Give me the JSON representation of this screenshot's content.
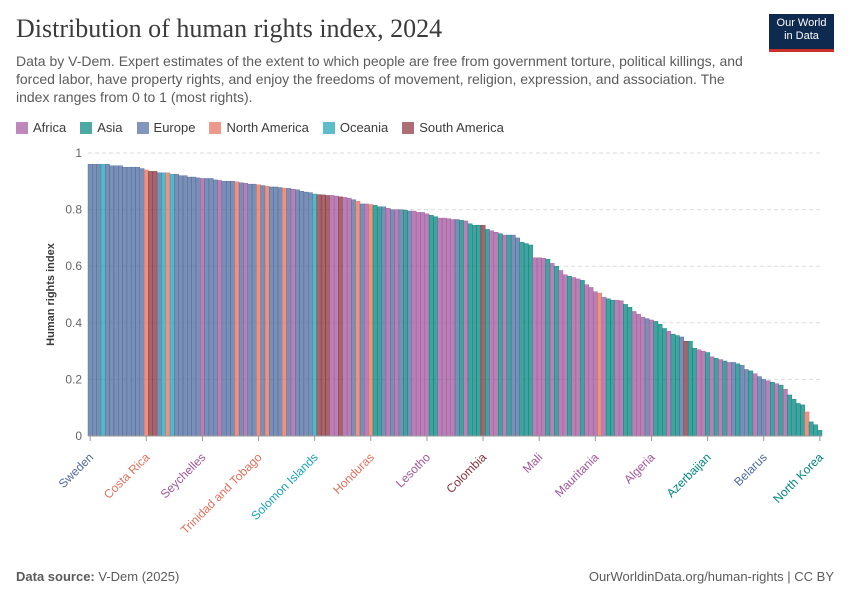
{
  "chart_data": {
    "type": "bar",
    "title": "Distribution of human rights index, 2024",
    "subtitle": "Data by V-Dem. Expert estimates of the extent to which people are free from government torture, political killings, and forced labor, have property rights, and enjoy the freedoms of movement, religion, expression, and association. The index ranges from 0 to 1 (most rights).",
    "logo": [
      "Our World",
      "in Data"
    ],
    "source_label": "Data source:",
    "source": "V-Dem (2025)",
    "url": "OurWorldinData.org/human-rights | CC BY",
    "ylabel": "Human rights index",
    "ylim": [
      0,
      1
    ],
    "yticks": [
      0,
      0.2,
      0.4,
      0.6,
      0.8,
      1
    ],
    "grid": true,
    "legend": [
      {
        "name": "Africa",
        "color": "#a2559c"
      },
      {
        "name": "Asia",
        "color": "#00847e"
      },
      {
        "name": "Europe",
        "color": "#4c6a9c"
      },
      {
        "name": "North America",
        "color": "#e56e5a"
      },
      {
        "name": "Oceania",
        "color": "#18a1b5"
      },
      {
        "name": "South America",
        "color": "#883039"
      }
    ],
    "categories": [
      "Sweden",
      null,
      null,
      null,
      null,
      null,
      null,
      null,
      null,
      null,
      null,
      null,
      null,
      "Costa Rica",
      null,
      null,
      null,
      null,
      null,
      null,
      null,
      null,
      null,
      null,
      null,
      null,
      "Seychelles",
      null,
      null,
      null,
      null,
      null,
      null,
      null,
      null,
      null,
      null,
      null,
      null,
      "Trinidad and Tobago",
      null,
      null,
      null,
      null,
      null,
      null,
      null,
      null,
      null,
      null,
      null,
      null,
      "Solomon Islands",
      null,
      null,
      null,
      null,
      null,
      null,
      null,
      null,
      null,
      null,
      null,
      null,
      "Honduras",
      null,
      null,
      null,
      null,
      null,
      null,
      null,
      null,
      null,
      null,
      null,
      null,
      "Lesotho",
      null,
      null,
      null,
      null,
      null,
      null,
      null,
      null,
      null,
      null,
      null,
      null,
      "Colombia",
      null,
      null,
      null,
      null,
      null,
      null,
      null,
      null,
      null,
      null,
      null,
      null,
      "Mali",
      null,
      null,
      null,
      null,
      null,
      null,
      null,
      null,
      null,
      null,
      null,
      null,
      "Mauritania",
      null,
      null,
      null,
      null,
      null,
      null,
      null,
      null,
      null,
      null,
      null,
      null,
      "Algeria",
      null,
      null,
      null,
      null,
      null,
      null,
      null,
      null,
      null,
      null,
      null,
      null,
      "Azerbaijan",
      null,
      null,
      null,
      null,
      null,
      null,
      null,
      null,
      null,
      null,
      null,
      null,
      "Belarus",
      null,
      null,
      null,
      null,
      null,
      null,
      null,
      null,
      null,
      null,
      null,
      null,
      "North Korea"
    ],
    "values": [
      0.96,
      0.96,
      0.96,
      0.96,
      0.96,
      0.955,
      0.955,
      0.955,
      0.95,
      0.95,
      0.95,
      0.95,
      0.945,
      0.94,
      0.935,
      0.935,
      0.93,
      0.93,
      0.93,
      0.925,
      0.925,
      0.92,
      0.92,
      0.915,
      0.915,
      0.912,
      0.91,
      0.91,
      0.91,
      0.905,
      0.903,
      0.9,
      0.9,
      0.9,
      0.898,
      0.895,
      0.893,
      0.89,
      0.89,
      0.888,
      0.885,
      0.883,
      0.88,
      0.88,
      0.878,
      0.876,
      0.875,
      0.872,
      0.87,
      0.865,
      0.862,
      0.86,
      0.855,
      0.853,
      0.852,
      0.85,
      0.85,
      0.848,
      0.845,
      0.843,
      0.84,
      0.835,
      0.83,
      0.82,
      0.82,
      0.818,
      0.815,
      0.81,
      0.81,
      0.805,
      0.8,
      0.8,
      0.8,
      0.798,
      0.795,
      0.795,
      0.79,
      0.79,
      0.785,
      0.78,
      0.775,
      0.77,
      0.77,
      0.768,
      0.765,
      0.765,
      0.762,
      0.76,
      0.75,
      0.745,
      0.745,
      0.745,
      0.73,
      0.725,
      0.72,
      0.715,
      0.71,
      0.71,
      0.71,
      0.7,
      0.685,
      0.68,
      0.675,
      0.63,
      0.63,
      0.628,
      0.625,
      0.61,
      0.6,
      0.585,
      0.57,
      0.565,
      0.56,
      0.555,
      0.55,
      0.535,
      0.525,
      0.51,
      0.505,
      0.49,
      0.485,
      0.48,
      0.48,
      0.478,
      0.465,
      0.455,
      0.44,
      0.43,
      0.42,
      0.415,
      0.41,
      0.405,
      0.395,
      0.38,
      0.37,
      0.36,
      0.355,
      0.35,
      0.335,
      0.335,
      0.31,
      0.305,
      0.3,
      0.295,
      0.28,
      0.275,
      0.27,
      0.265,
      0.26,
      0.26,
      0.255,
      0.25,
      0.235,
      0.23,
      0.22,
      0.21,
      0.2,
      0.195,
      0.19,
      0.185,
      0.18,
      0.165,
      0.145,
      0.13,
      0.115,
      0.11,
      0.085,
      0.05,
      0.04,
      0.02
    ],
    "bar_regions": [
      "Europe",
      "Europe",
      "Europe",
      "Oceania",
      "Europe",
      "Europe",
      "Europe",
      "Europe",
      "Europe",
      "Europe",
      "Europe",
      "Europe",
      "Europe",
      "North America",
      "South America",
      "South America",
      "Europe",
      "Oceania",
      "North America",
      "Oceania",
      "Europe",
      "Europe",
      "Europe",
      "Europe",
      "Europe",
      "Europe",
      "Africa",
      "Europe",
      "Europe",
      "Europe",
      "Africa",
      "Europe",
      "Europe",
      "Europe",
      "North America",
      "Europe",
      "Africa",
      "Europe",
      "Europe",
      "North America",
      "Europe",
      "North America",
      "Europe",
      "Europe",
      "Europe",
      "North America",
      "Europe",
      "Africa",
      "Europe",
      "Europe",
      "Europe",
      "Europe",
      "Oceania",
      "South America",
      "South America",
      "South America",
      "Africa",
      "Africa",
      "South America",
      "Africa",
      "Africa",
      "Europe",
      "North America",
      "Europe",
      "Africa",
      "North America",
      "Asia",
      "Asia",
      "Europe",
      "Africa",
      "Europe",
      "Africa",
      "Europe",
      "Asia",
      "Europe",
      "Africa",
      "Africa",
      "Africa",
      "Africa",
      "Asia",
      "Asia",
      "Africa",
      "Africa",
      "Africa",
      "Africa",
      "Europe",
      "Asia",
      "Africa",
      "Asia",
      "Asia",
      "Asia",
      "South America",
      "Asia",
      "Africa",
      "Africa",
      "Asia",
      "Africa",
      "Asia",
      "Europe",
      "Europe",
      "Asia",
      "Asia",
      "Asia",
      "Africa",
      "Africa",
      "Africa",
      "Asia",
      "Africa",
      "Asia",
      "Africa",
      "Africa",
      "Asia",
      "Africa",
      "Africa",
      "Asia",
      "Africa",
      "Africa",
      "Africa",
      "North America",
      "Africa",
      "Asia",
      "Asia",
      "Africa",
      "Africa",
      "Asia",
      "Asia",
      "Africa",
      "Africa",
      "Africa",
      "Europe",
      "Africa",
      "Asia",
      "Asia",
      "Asia",
      "Africa",
      "Asia",
      "Asia",
      "Europe",
      "South America",
      "Asia",
      "Asia",
      "Africa",
      "Africa",
      "Asia",
      "Africa",
      "Asia",
      "Africa",
      "Asia",
      "Africa",
      "Europe",
      "Asia",
      "Europe",
      "Europe",
      "Asia",
      "Africa",
      "Europe",
      "Europe",
      "Africa",
      "Asia",
      "Africa",
      "Asia",
      "Africa",
      "Asia",
      "Asia",
      "Asia",
      "Asia",
      "North America",
      "Asia",
      "Asia",
      "Asia"
    ]
  }
}
